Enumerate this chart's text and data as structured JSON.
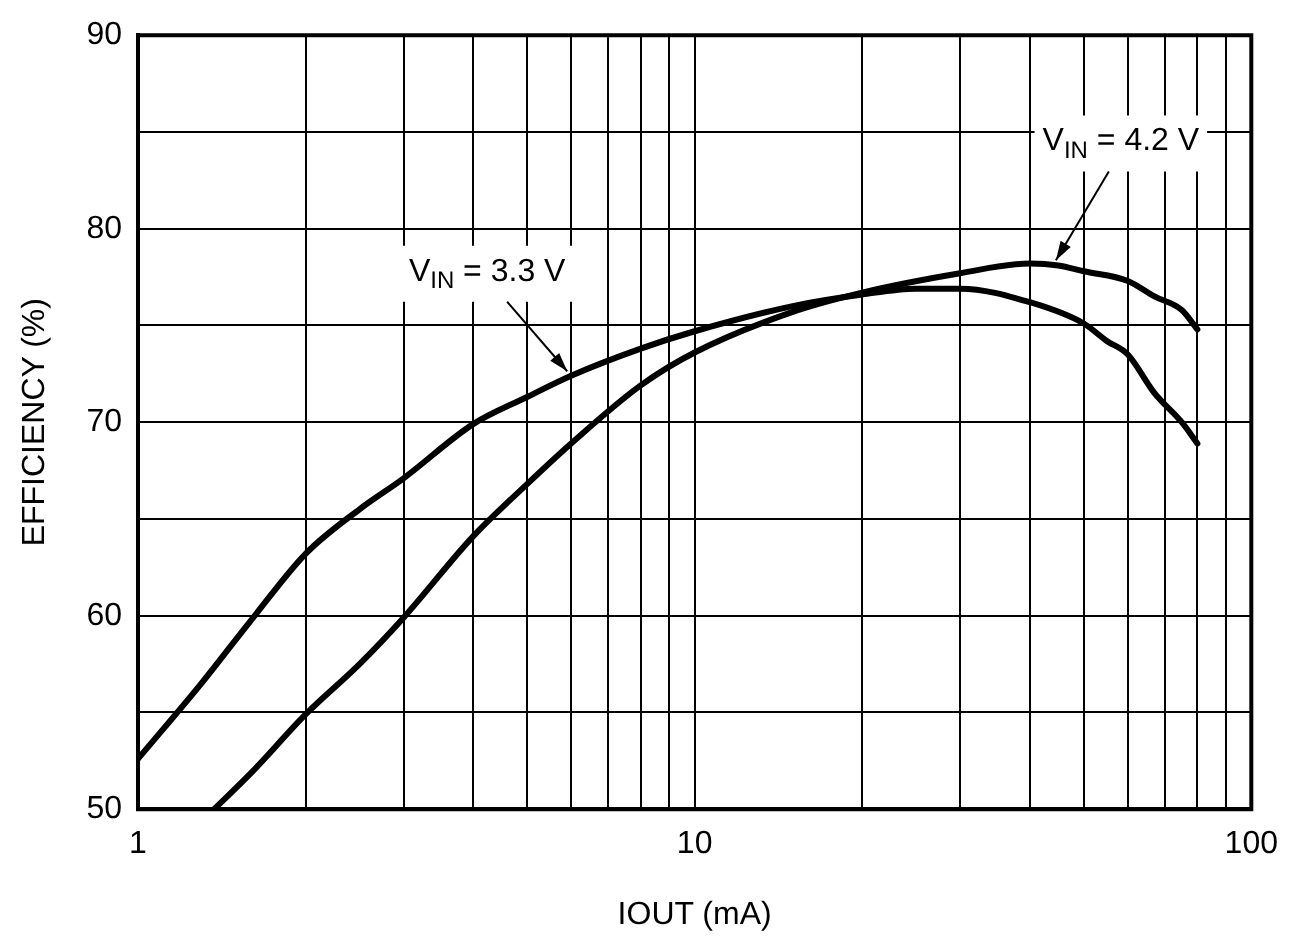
{
  "chart_data": {
    "type": "line",
    "xlabel": "IOUT (mA)",
    "ylabel": "EFFICIENCY (%)",
    "log": "x",
    "grid": true,
    "legend": false,
    "marker": "none",
    "line_style": "solid",
    "xlim": [
      1,
      100
    ],
    "xticks": [
      1,
      {
        "value": 2,
        "label": null
      },
      {
        "value": 3,
        "label": null
      },
      {
        "value": 4,
        "label": null
      },
      {
        "value": 5,
        "label": null
      },
      {
        "value": 6,
        "label": null
      },
      {
        "value": 7,
        "label": null
      },
      {
        "value": 8,
        "label": null
      },
      {
        "value": 9,
        "label": null
      },
      10,
      {
        "value": 20,
        "label": null
      },
      {
        "value": 30,
        "label": null
      },
      {
        "value": 40,
        "label": null
      },
      {
        "value": 50,
        "label": null
      },
      {
        "value": 60,
        "label": null
      },
      {
        "value": 70,
        "label": null
      },
      {
        "value": 80,
        "label": null
      },
      {
        "value": 90,
        "label": null
      },
      100
    ],
    "ylim": [
      50,
      90
    ],
    "yticks": [
      50,
      {
        "value": 55,
        "label": null
      },
      60,
      {
        "value": 65,
        "label": null
      },
      70,
      {
        "value": 75,
        "label": null
      },
      80,
      {
        "value": 85,
        "label": null
      },
      90
    ],
    "series": [
      {
        "color": "#000000",
        "x": [
          1,
          1.3,
          1.6,
          2,
          2.5,
          3,
          4,
          5,
          6,
          8,
          10,
          15,
          20,
          25,
          30,
          40,
          50,
          55,
          60,
          67,
          75,
          80
        ],
        "values": [
          52.6,
          56.5,
          59.8,
          63.2,
          65.5,
          67.1,
          69.9,
          71.3,
          72.4,
          73.8,
          74.7,
          76.0,
          76.6,
          76.9,
          76.9,
          76.2,
          75.1,
          74.2,
          73.5,
          71.5,
          70.0,
          68.9
        ]
      },
      {
        "color": "#000000",
        "x": [
          1.37,
          1.6,
          2,
          2.5,
          3,
          4,
          5,
          6,
          8,
          10,
          15,
          20,
          30,
          40,
          45,
          50,
          60,
          67,
          75,
          80
        ],
        "values": [
          50,
          51.9,
          54.9,
          57.5,
          59.9,
          64.1,
          66.8,
          68.9,
          71.9,
          73.6,
          75.7,
          76.7,
          77.7,
          78.2,
          78.1,
          77.8,
          77.3,
          76.5,
          75.8,
          74.8
        ]
      }
    ],
    "annotations": [
      {
        "text": "V$_{IN}$ = 3.3 V",
        "x": 6,
        "y": 72.4
      },
      {
        "text": "V$_{IN}$ = 4.2 V",
        "x": 44,
        "y": 78.1
      }
    ]
  }
}
